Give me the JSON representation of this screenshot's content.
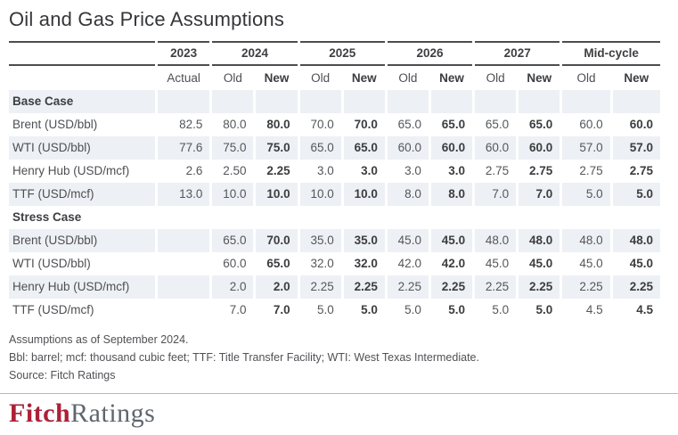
{
  "title": "Oil and Gas Price Assumptions",
  "table": {
    "year_groups": [
      {
        "label": "2023",
        "cols": [
          {
            "label": "Actual",
            "bold": false
          }
        ]
      },
      {
        "label": "2024",
        "cols": [
          {
            "label": "Old",
            "bold": false
          },
          {
            "label": "New",
            "bold": true
          }
        ]
      },
      {
        "label": "2025",
        "cols": [
          {
            "label": "Old",
            "bold": false
          },
          {
            "label": "New",
            "bold": true
          }
        ]
      },
      {
        "label": "2026",
        "cols": [
          {
            "label": "Old",
            "bold": false
          },
          {
            "label": "New",
            "bold": true
          }
        ]
      },
      {
        "label": "2027",
        "cols": [
          {
            "label": "Old",
            "bold": false
          },
          {
            "label": "New",
            "bold": true
          }
        ]
      },
      {
        "label": "Mid-cycle",
        "cols": [
          {
            "label": "Old",
            "bold": false
          },
          {
            "label": "New",
            "bold": true
          }
        ]
      }
    ],
    "sections": [
      {
        "name": "Base Case",
        "rows": [
          {
            "label": "Brent (USD/bbl)",
            "values": [
              "82.5",
              "80.0",
              "80.0",
              "70.0",
              "70.0",
              "65.0",
              "65.0",
              "65.0",
              "65.0",
              "60.0",
              "60.0"
            ]
          },
          {
            "label": "WTI (USD/bbl)",
            "values": [
              "77.6",
              "75.0",
              "75.0",
              "65.0",
              "65.0",
              "60.0",
              "60.0",
              "60.0",
              "60.0",
              "57.0",
              "57.0"
            ]
          },
          {
            "label": "Henry Hub (USD/mcf)",
            "values": [
              "2.6",
              "2.50",
              "2.25",
              "3.0",
              "3.0",
              "3.0",
              "3.0",
              "2.75",
              "2.75",
              "2.75",
              "2.75"
            ]
          },
          {
            "label": "TTF (USD/mcf)",
            "values": [
              "13.0",
              "10.0",
              "10.0",
              "10.0",
              "10.0",
              "8.0",
              "8.0",
              "7.0",
              "7.0",
              "5.0",
              "5.0"
            ]
          }
        ]
      },
      {
        "name": "Stress Case",
        "rows": [
          {
            "label": "Brent (USD/bbl)",
            "values": [
              "",
              "65.0",
              "70.0",
              "35.0",
              "35.0",
              "45.0",
              "45.0",
              "48.0",
              "48.0",
              "48.0",
              "48.0"
            ]
          },
          {
            "label": "WTI (USD/bbl)",
            "values": [
              "",
              "60.0",
              "65.0",
              "32.0",
              "32.0",
              "42.0",
              "42.0",
              "45.0",
              "45.0",
              "45.0",
              "45.0"
            ]
          },
          {
            "label": "Henry Hub (USD/mcf)",
            "values": [
              "",
              "2.0",
              "2.0",
              "2.25",
              "2.25",
              "2.25",
              "2.25",
              "2.25",
              "2.25",
              "2.25",
              "2.25"
            ]
          },
          {
            "label": "TTF (USD/mcf)",
            "values": [
              "",
              "7.0",
              "7.0",
              "5.0",
              "5.0",
              "5.0",
              "5.0",
              "5.0",
              "5.0",
              "4.5",
              "4.5"
            ]
          }
        ]
      }
    ]
  },
  "footnotes": [
    "Assumptions as of September 2024.",
    "Bbl: barrel; mcf: thousand cubic feet; TTF: Title Transfer Facility; WTI: West Texas Intermediate.",
    "Source: Fitch Ratings"
  ],
  "logo": {
    "fitch": "Fitch",
    "ratings": "Ratings"
  },
  "colors": {
    "accent_red": "#ac2037",
    "logo_gray": "#5f666d",
    "row_shading": "#edf0f4",
    "rule_dark": "#4c4d4f",
    "text_dark": "#3c3d40",
    "text_regular": "#55565a"
  }
}
